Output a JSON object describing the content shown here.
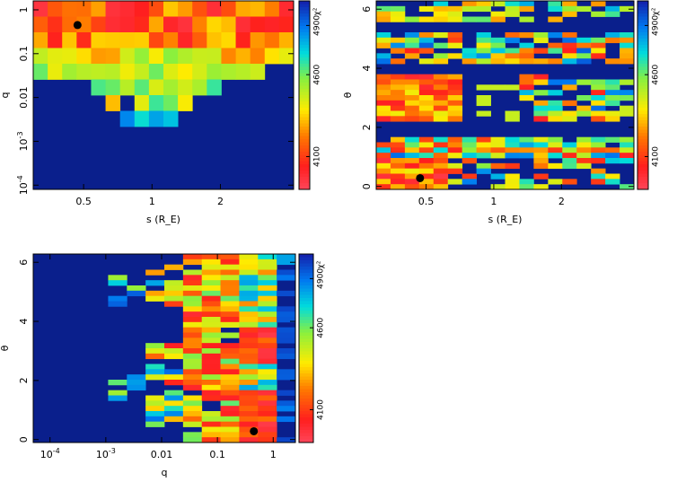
{
  "chart_data": [
    {
      "type": "heatmap",
      "id": "panel-s-q",
      "xlabel": "s (R_E)",
      "ylabel": "q",
      "xscale": "log",
      "yscale": "log",
      "xlim": [
        0.3,
        4.2
      ],
      "ylim": [
        8e-05,
        1.6
      ],
      "xticks": [
        {
          "v": 0.5,
          "label": "0.5"
        },
        {
          "v": 1,
          "label": "1"
        },
        {
          "v": 2,
          "label": "2"
        }
      ],
      "yticks": [
        {
          "v": 1,
          "label": "1"
        },
        {
          "v": 0.1,
          "label": "0.1"
        },
        {
          "v": 0.01,
          "label": "0.01"
        },
        {
          "v": 0.001,
          "label": "10",
          "sup": "-3"
        },
        {
          "v": 0.0001,
          "label": "10",
          "sup": "-4"
        }
      ],
      "grid": {
        "nx": 18,
        "ny": 12
      },
      "best_fit": {
        "x": 0.47,
        "y": 0.45
      },
      "colorbar": {
        "label": "χ²",
        "ticks": [
          {
            "v": 4100,
            "label": "4100"
          },
          {
            "v": 4600,
            "label": "4600"
          },
          {
            "v": 4900,
            "label": "4900"
          }
        ],
        "range": [
          3900,
          5050
        ]
      }
    },
    {
      "type": "heatmap",
      "id": "panel-s-theta",
      "xlabel": "s (R_E)",
      "ylabel": "θ",
      "xscale": "log",
      "yscale": "linear",
      "xlim": [
        0.3,
        4.2
      ],
      "ylim": [
        -0.1,
        6.28
      ],
      "xticks": [
        {
          "v": 0.5,
          "label": "0.5"
        },
        {
          "v": 1,
          "label": "1"
        },
        {
          "v": 2,
          "label": "2"
        }
      ],
      "yticks": [
        {
          "v": 0,
          "label": "0"
        },
        {
          "v": 2,
          "label": "2"
        },
        {
          "v": 4,
          "label": "4"
        },
        {
          "v": 6,
          "label": "6"
        }
      ],
      "grid": {
        "nx": 18,
        "ny": 36
      },
      "best_fit": {
        "x": 0.47,
        "y": 0.28
      },
      "colorbar": {
        "label": "χ²",
        "ticks": [
          {
            "v": 4100,
            "label": "4100"
          },
          {
            "v": 4600,
            "label": "4600"
          },
          {
            "v": 4900,
            "label": "4900"
          }
        ],
        "range": [
          3900,
          5050
        ]
      }
    },
    {
      "type": "heatmap",
      "id": "panel-q-theta",
      "xlabel": "q",
      "ylabel": "θ",
      "xscale": "log",
      "yscale": "linear",
      "xlim": [
        5e-05,
        2.5
      ],
      "ylim": [
        -0.1,
        6.28
      ],
      "xticks": [
        {
          "v": 0.0001,
          "label": "10",
          "sup": "-4"
        },
        {
          "v": 0.001,
          "label": "10",
          "sup": "-3"
        },
        {
          "v": 0.01,
          "label": "0.01"
        },
        {
          "v": 0.1,
          "label": "0.1"
        },
        {
          "v": 1,
          "label": "1"
        }
      ],
      "yticks": [
        {
          "v": 0,
          "label": "0"
        },
        {
          "v": 2,
          "label": "2"
        },
        {
          "v": 4,
          "label": "4"
        },
        {
          "v": 6,
          "label": "6"
        }
      ],
      "grid": {
        "nx": 14,
        "ny": 36
      },
      "best_fit": {
        "x": 0.45,
        "y": 0.28
      },
      "colorbar": {
        "label": "χ²",
        "ticks": [
          {
            "v": 4100,
            "label": "4100"
          },
          {
            "v": 4600,
            "label": "4600"
          },
          {
            "v": 4900,
            "label": "4900"
          }
        ],
        "range": [
          3900,
          5050
        ]
      }
    }
  ],
  "colors": {
    "background_cell": "#0a1f8c",
    "best_fit_marker": "#000000"
  }
}
